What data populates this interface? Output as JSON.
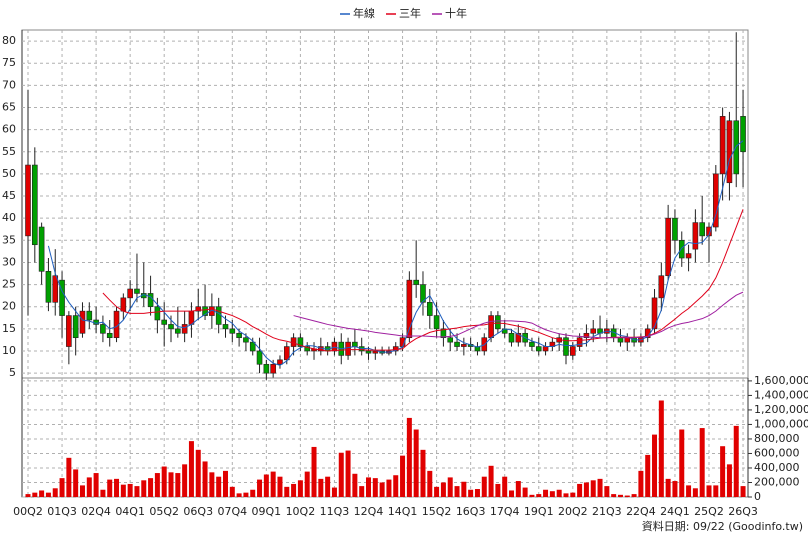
{
  "chart_data": {
    "type": "candlestick",
    "categories": [
      "00Q2",
      null,
      null,
      null,
      null,
      "01Q3",
      null,
      null,
      null,
      null,
      "02Q4",
      null,
      null,
      null,
      null,
      "04Q1",
      null,
      null,
      null,
      null,
      "05Q2",
      null,
      null,
      null,
      null,
      "06Q3",
      null,
      null,
      null,
      null,
      "07Q4",
      null,
      null,
      null,
      null,
      "09Q1",
      null,
      null,
      null,
      null,
      "10Q2",
      null,
      null,
      null,
      null,
      "11Q3",
      null,
      null,
      null,
      null,
      "12Q4",
      null,
      null,
      null,
      null,
      "14Q1",
      null,
      null,
      null,
      null,
      "15Q2",
      null,
      null,
      null,
      null,
      "16Q3",
      null,
      null,
      null,
      null,
      "17Q4",
      null,
      null,
      null,
      null,
      "19Q1",
      null,
      null,
      null,
      null,
      "20Q2",
      null,
      null,
      null,
      null,
      "21Q3",
      null,
      null,
      null,
      null,
      "22Q4",
      null,
      null,
      null,
      null,
      "24Q1",
      null,
      null,
      null,
      null,
      "25Q2",
      null,
      null,
      null,
      null,
      "26Q3"
    ],
    "open": [
      36,
      52,
      38,
      28,
      21,
      26,
      11,
      18,
      14,
      19,
      17,
      16,
      14,
      13,
      19,
      22,
      24,
      23,
      23,
      20,
      17,
      16,
      15,
      14,
      16,
      19,
      20,
      18,
      20,
      16,
      15,
      14,
      13,
      12,
      10,
      7,
      5,
      7,
      8,
      11,
      13,
      11,
      10,
      10,
      11,
      10,
      12,
      9,
      12,
      11,
      10,
      9.5,
      10,
      9.5,
      10,
      11,
      13,
      26,
      25,
      21,
      18,
      15,
      13,
      12,
      11,
      11.5,
      11,
      10,
      13,
      18,
      15,
      14,
      12,
      14,
      12,
      11,
      10,
      11,
      12,
      13,
      9,
      11,
      13,
      14,
      15,
      14,
      15,
      13,
      12,
      13,
      12,
      13,
      15,
      22,
      27,
      40,
      35,
      31,
      33,
      39,
      36,
      38,
      50,
      48,
      62,
      63
    ],
    "high": [
      69,
      56,
      39,
      31,
      33,
      28,
      19,
      20,
      21,
      21,
      20,
      18,
      17,
      20,
      23,
      26,
      32,
      30,
      27,
      22,
      21,
      18,
      20,
      19,
      21,
      24,
      25,
      23,
      22,
      18,
      17,
      15,
      14,
      13,
      13,
      8,
      8,
      9,
      12,
      14,
      14,
      12,
      12,
      13,
      12,
      13,
      14,
      13,
      15,
      13,
      11,
      11,
      11,
      11,
      12,
      14,
      28,
      35,
      28,
      24,
      21,
      17,
      15,
      14,
      13,
      13,
      12,
      14,
      19,
      19,
      17,
      15,
      16,
      15,
      13,
      13,
      12,
      13,
      14,
      14,
      12,
      14,
      16,
      17,
      18,
      17,
      16,
      15,
      14,
      15,
      14,
      16,
      24,
      30,
      43,
      42,
      37,
      34,
      42,
      45,
      39,
      52,
      65,
      64,
      82,
      69
    ],
    "low": [
      18,
      30,
      25,
      19,
      18,
      13,
      7,
      9,
      13,
      15,
      14,
      12,
      11,
      12,
      17,
      19,
      21,
      20,
      18,
      14,
      11,
      12,
      13,
      12,
      13,
      17,
      17,
      15,
      14,
      13,
      12,
      11,
      10,
      9,
      5,
      3.5,
      4,
      6,
      7,
      9,
      10,
      9,
      8,
      9,
      9,
      9,
      7,
      8,
      9,
      9,
      8,
      8,
      9,
      9,
      9,
      10,
      12,
      22,
      18,
      15,
      13,
      11,
      10,
      10,
      9,
      10,
      9,
      9,
      12,
      14,
      13,
      11,
      11,
      11,
      10,
      9,
      9,
      10,
      10,
      7,
      8,
      10,
      11,
      12,
      13,
      12,
      12,
      11,
      10,
      11,
      11,
      12,
      14,
      19,
      26,
      32,
      29,
      28,
      30,
      34,
      30,
      37,
      44,
      44,
      47,
      47
    ],
    "close": [
      52,
      34,
      28,
      21,
      27,
      18,
      18,
      13,
      19,
      17,
      16,
      14,
      13,
      19,
      22,
      24,
      23,
      22,
      20,
      17,
      16,
      15,
      14,
      16,
      19,
      20,
      18,
      20,
      16,
      15,
      14,
      13,
      12,
      10,
      7,
      5,
      7,
      8,
      11,
      13,
      11,
      10,
      10.5,
      11,
      10,
      12,
      9,
      12,
      11,
      10,
      9.5,
      10,
      9.5,
      10,
      11,
      13,
      26,
      25,
      21,
      18,
      15,
      13,
      12,
      11,
      11.5,
      11,
      10,
      13,
      18,
      15,
      14,
      12,
      14,
      12,
      11,
      10,
      11,
      12,
      13,
      9,
      11,
      13,
      14,
      15,
      14,
      15,
      13,
      12,
      13,
      12,
      13,
      15,
      22,
      27,
      40,
      35,
      31,
      32,
      39,
      36,
      38,
      50,
      63,
      62,
      50,
      55
    ],
    "up_color": "#e00000",
    "down_color": "#00a000",
    "lines": [
      {
        "name": "年線",
        "color": "#1f5fbf",
        "values": [
          null,
          null,
          null,
          33.75,
          27.5,
          23.5,
          21,
          19,
          17,
          16.75,
          16.25,
          16.5,
          15,
          15.5,
          17,
          19.5,
          22,
          22.75,
          22.25,
          20.5,
          18.75,
          17,
          15.5,
          15.25,
          16,
          17.25,
          18.25,
          19.25,
          18.5,
          17.25,
          16.25,
          14.5,
          13.5,
          12.25,
          10.5,
          8.5,
          7.25,
          6.75,
          7.75,
          9.75,
          10.75,
          11.25,
          11.13,
          10.63,
          10.38,
          10.88,
          10.5,
          10.75,
          11,
          10.5,
          10.63,
          10.13,
          9.75,
          9.75,
          10.13,
          10.88,
          15,
          18.75,
          21.25,
          22.5,
          19.75,
          16.75,
          14.5,
          12.75,
          11.88,
          11.38,
          10.88,
          11.38,
          13,
          14,
          15,
          14.75,
          13.75,
          13,
          12.25,
          11.75,
          11,
          11,
          11.5,
          11.25,
          11.25,
          11.5,
          11.75,
          13.25,
          14,
          14.5,
          14.25,
          13.5,
          13.25,
          12.5,
          12.5,
          13.25,
          15.5,
          19.25,
          26,
          31,
          33.25,
          34.5,
          34.25,
          34.5,
          36.25,
          40.75,
          46.75,
          53.25,
          56.25,
          57.5
        ]
      },
      {
        "name": "三年",
        "color": "#e0001a",
        "values": [
          null,
          null,
          null,
          null,
          null,
          null,
          null,
          null,
          null,
          null,
          null,
          23.1,
          21.5,
          20,
          19,
          18.5,
          18.5,
          18.5,
          18.7,
          18.8,
          19,
          19,
          19,
          19,
          19,
          19.2,
          19.3,
          19.5,
          19,
          18.5,
          18,
          17.3,
          16.5,
          15.5,
          14.7,
          13.8,
          13,
          12.5,
          12.2,
          11.8,
          11.3,
          10.8,
          10.5,
          10.2,
          10,
          10.1,
          10.2,
          10.3,
          10.3,
          10.3,
          10.2,
          10.2,
          10.2,
          10.2,
          10.3,
          10.5,
          11.8,
          12.8,
          13.5,
          14.2,
          14.6,
          14.8,
          15,
          15.2,
          15.5,
          15.7,
          15.8,
          15.9,
          16.2,
          16.3,
          16.2,
          15.9,
          15.6,
          15.2,
          14.7,
          14.2,
          13.6,
          13,
          12.6,
          12.3,
          12.3,
          12.4,
          12.5,
          12.7,
          12.9,
          13,
          13.1,
          13.1,
          13.1,
          13.1,
          13.2,
          13.3,
          14,
          14.8,
          16,
          17.2,
          18.5,
          19.6,
          21,
          22.4,
          24,
          26.5,
          30,
          34,
          38,
          42
        ]
      },
      {
        "name": "十年",
        "color": "#a020a0",
        "values": [
          null,
          null,
          null,
          null,
          null,
          null,
          null,
          null,
          null,
          null,
          null,
          null,
          null,
          null,
          null,
          null,
          null,
          null,
          null,
          null,
          null,
          null,
          null,
          null,
          null,
          null,
          null,
          null,
          null,
          null,
          null,
          null,
          null,
          null,
          null,
          null,
          null,
          null,
          null,
          18,
          17.6,
          17.2,
          16.8,
          16.4,
          16,
          15.7,
          15.4,
          15.1,
          14.9,
          14.7,
          14.5,
          14.2,
          14,
          13.8,
          13.6,
          13.4,
          13.4,
          13.4,
          13.4,
          13.3,
          13.2,
          13.2,
          13.3,
          13.6,
          14.3,
          15,
          15.7,
          16.3,
          16.7,
          16.8,
          16.8,
          16.8,
          16.7,
          16.6,
          16.3,
          15.5,
          14.8,
          14.3,
          13.9,
          13.6,
          13.4,
          13.3,
          13.2,
          13.1,
          13,
          13,
          13,
          13,
          13,
          13,
          13.1,
          13.3,
          13.8,
          14.4,
          15.2,
          15.8,
          16.2,
          16.5,
          16.9,
          17.3,
          18,
          19,
          20.3,
          21.5,
          22.6,
          23.3
        ]
      }
    ],
    "ylim": [
      3.9,
      82.5
    ],
    "yticks": [
      5,
      10,
      15,
      20,
      25,
      30,
      35,
      40,
      45,
      50,
      55,
      60,
      65,
      70,
      75,
      80
    ],
    "volume": {
      "color": "#e00000",
      "values": [
        40000,
        60000,
        90000,
        60000,
        120000,
        260000,
        540000,
        380000,
        160000,
        270000,
        330000,
        100000,
        240000,
        250000,
        170000,
        180000,
        150000,
        230000,
        260000,
        330000,
        420000,
        340000,
        330000,
        450000,
        770000,
        650000,
        490000,
        340000,
        280000,
        360000,
        140000,
        50000,
        60000,
        100000,
        240000,
        310000,
        350000,
        280000,
        140000,
        180000,
        230000,
        350000,
        690000,
        250000,
        280000,
        130000,
        610000,
        640000,
        320000,
        150000,
        270000,
        260000,
        200000,
        240000,
        300000,
        570000,
        1090000,
        930000,
        650000,
        360000,
        140000,
        200000,
        270000,
        150000,
        210000,
        100000,
        110000,
        280000,
        430000,
        180000,
        280000,
        90000,
        220000,
        130000,
        30000,
        40000,
        100000,
        80000,
        100000,
        50000,
        60000,
        180000,
        200000,
        230000,
        250000,
        150000,
        40000,
        30000,
        20000,
        40000,
        360000,
        580000,
        860000,
        1330000,
        250000,
        220000,
        930000,
        160000,
        120000,
        950000,
        160000,
        160000,
        700000,
        450000,
        980000,
        150000
      ],
      "ylim": [
        0,
        1640000
      ],
      "yticks": [
        0,
        {
          "value": 200000,
          "label": "200,000"
        },
        {
          "value": 400000,
          "label": "400,000"
        },
        {
          "value": 600000,
          "label": "600,000"
        },
        {
          "value": 800000,
          "label": "800,000"
        },
        {
          "value": 1000000,
          "label": "1,000,000"
        },
        {
          "value": 1200000,
          "label": "1,200,000"
        },
        {
          "value": 1400000,
          "label": "1,400,000"
        },
        {
          "value": 1600000,
          "label": "1,600,000"
        }
      ]
    },
    "grid": true,
    "footnote": "資料日期: 09/22 (Goodinfo.tw)"
  }
}
